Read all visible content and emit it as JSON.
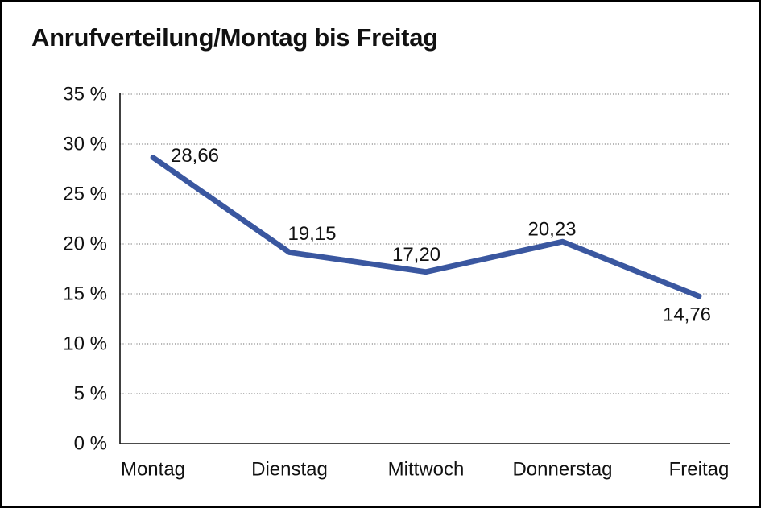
{
  "chart_data": {
    "type": "line",
    "title": "Anrufverteilung/Montag bis Freitag",
    "categories": [
      "Montag",
      "Dienstag",
      "Mittwoch",
      "Donnerstag",
      "Freitag"
    ],
    "series": [
      {
        "values": [
          28.66,
          19.15,
          17.2,
          20.23,
          14.76
        ],
        "color": "#3A57A0"
      }
    ],
    "data_labels": [
      "28,66",
      "19,15",
      "17,20",
      "20,23",
      "14,76"
    ],
    "y_axis": {
      "min": 0,
      "max": 35,
      "step": 5,
      "tick_labels": [
        "0 %",
        "5 %",
        "10 %",
        "15 %",
        "20 %",
        "25 %",
        "30 %",
        "35 %"
      ],
      "grid": "dotted"
    },
    "legend_position": "none",
    "colors": {
      "line": "#3A57A0",
      "grid": "#8a8a8a",
      "axis": "#111111",
      "text": "#111111",
      "background": "#ffffff",
      "border": "#000000"
    }
  }
}
